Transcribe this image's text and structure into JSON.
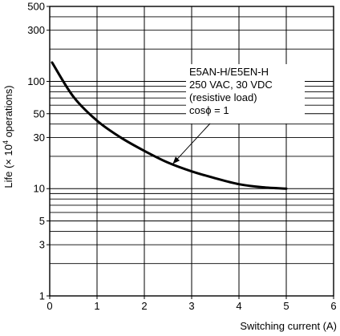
{
  "chart_data": {
    "type": "line",
    "xlabel": "Switching current (A)",
    "ylabel_parts": {
      "prefix": "Life (",
      "times": "×",
      "ten": " 10",
      "exponent": "4",
      "suffix": " operations)"
    },
    "xlim": [
      0,
      6
    ],
    "ylim": [
      1,
      500
    ],
    "y_scale": "log",
    "x_ticks": [
      "0",
      "1",
      "2",
      "3",
      "4",
      "5",
      "6"
    ],
    "y_ticks": [
      {
        "value": 1,
        "label": "1"
      },
      {
        "value": 3,
        "label": "3"
      },
      {
        "value": 5,
        "label": "5"
      },
      {
        "value": 10,
        "label": "10"
      },
      {
        "value": 30,
        "label": "30"
      },
      {
        "value": 50,
        "label": "50"
      },
      {
        "value": 100,
        "label": "100"
      },
      {
        "value": 300,
        "label": "300"
      },
      {
        "value": 500,
        "label": "500"
      }
    ],
    "grid": true,
    "series": [
      {
        "x": [
          0.05,
          0.5,
          1.0,
          1.5,
          2.0,
          2.5,
          3.0,
          3.5,
          4.0,
          4.5,
          5.0
        ],
        "values": [
          150,
          72,
          43,
          30,
          22.5,
          17.5,
          14.5,
          12.5,
          11,
          10.3,
          10
        ]
      }
    ],
    "annotation": {
      "lines": [
        "E5AN-H/E5EN-H",
        "250 VAC, 30 VDC",
        "(resistive load)",
        "cosϕ = 1"
      ],
      "arrow_target": {
        "x": 2.6,
        "y": 17
      }
    }
  }
}
